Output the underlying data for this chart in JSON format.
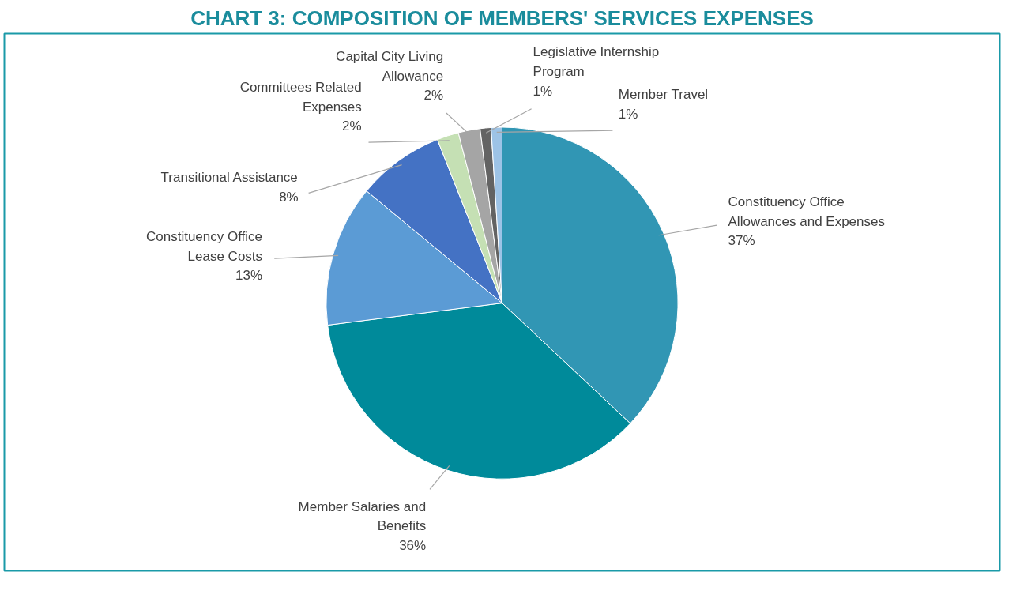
{
  "chart_data": {
    "type": "pie",
    "title": "CHART 3: COMPOSITION OF MEMBERS' SERVICES EXPENSES",
    "categories": [
      "Constituency Office Allowances and Expenses",
      "Member Salaries and Benefits",
      "Constituency Office Lease Costs",
      "Transitional Assistance",
      "Committees Related Expenses",
      "Capital City Living Allowance",
      "Legislative Internship Program",
      "Member Travel"
    ],
    "values": [
      37,
      36,
      13,
      8,
      2,
      2,
      1,
      1
    ],
    "colors": [
      "#3196b4",
      "#008a9a",
      "#5b9bd5",
      "#4472c4",
      "#c5e0b4",
      "#a5a5a5",
      "#636363",
      "#9dc3e6"
    ],
    "value_labels": [
      "37%",
      "36%",
      "13%",
      "8%",
      "2%",
      "2%",
      "1%",
      "1%"
    ]
  }
}
